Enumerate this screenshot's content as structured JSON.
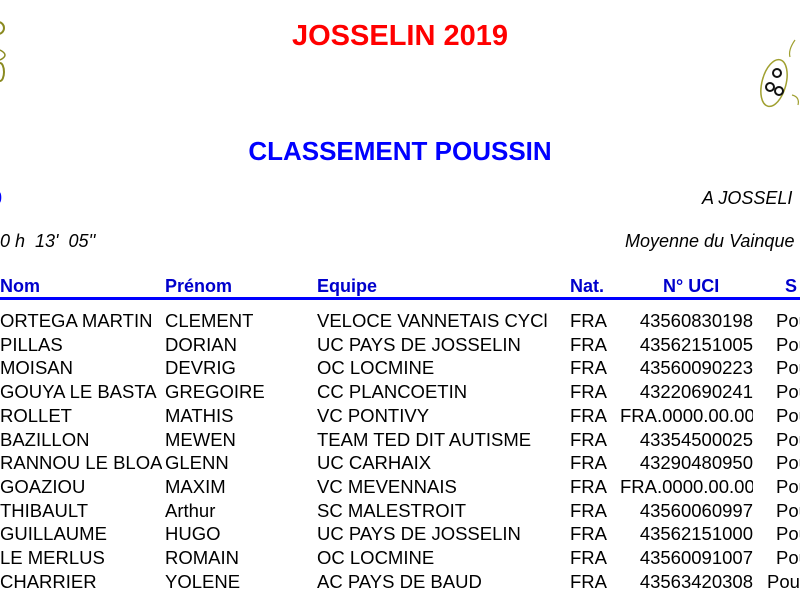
{
  "header": {
    "title": "JOSSELIN 2019",
    "subtitle": "CLASSEMENT POUSSIN",
    "left_fragment": "0",
    "location": "A JOSSELI",
    "time": "0 h  13'  05''",
    "average_label": "Moyenne du Vainque",
    "colors": {
      "title": "#ff0000",
      "subtitle": "#0000ff",
      "headers": "#0000cc",
      "rule": "#0000ff"
    }
  },
  "logos": {
    "left": "celtic-triskel-logo",
    "right": "celtic-triskel-logo"
  },
  "table": {
    "columns": [
      "Nom",
      "Prénom",
      "Equipe",
      "Nat.",
      "N° UCI",
      "S"
    ],
    "rows": [
      [
        "ORTEGA MARTIN",
        "CLEMENT",
        "VELOCE VANNETAIS CYCl",
        "FRA",
        "43560830198",
        "Pou"
      ],
      [
        "PILLAS",
        "DORIAN",
        "UC PAYS DE JOSSELIN",
        "FRA",
        "43562151005",
        "Pou"
      ],
      [
        "MOISAN",
        "DEVRIG",
        "OC LOCMINE",
        "FRA",
        "43560090223",
        "Pou"
      ],
      [
        "GOUYA LE BASTA",
        "GREGOIRE",
        "CC PLANCOETIN",
        "FRA",
        "43220690241",
        "Pou"
      ],
      [
        "ROLLET",
        "MATHIS",
        "VC PONTIVY",
        "FRA",
        "FRA.0000.00.00",
        "Pou"
      ],
      [
        "BAZILLON",
        "MEWEN",
        "TEAM TED DIT AUTISME",
        "FRA",
        "43354500025",
        "Pou"
      ],
      [
        "RANNOU LE BLOA",
        "GLENN",
        "UC CARHAIX",
        "FRA",
        "43290480950",
        "Pou"
      ],
      [
        "GOAZIOU",
        "MAXIM",
        "VC MEVENNAIS",
        "FRA",
        "FRA.0000.00.00",
        "Pou"
      ],
      [
        "THIBAULT",
        "Arthur",
        "SC MALESTROIT",
        "FRA",
        "43560060997",
        "Pou"
      ],
      [
        "GUILLAUME",
        "HUGO",
        "UC PAYS DE JOSSELIN",
        "FRA",
        "43562151000",
        "Pou"
      ],
      [
        "LE MERLUS",
        "ROMAIN",
        "OC LOCMINE",
        "FRA",
        "43560091007",
        "Pou"
      ],
      [
        "CHARRIER",
        "YOLENE",
        "AC PAYS DE BAUD",
        "FRA",
        "43563420308",
        "Pou"
      ]
    ]
  }
}
